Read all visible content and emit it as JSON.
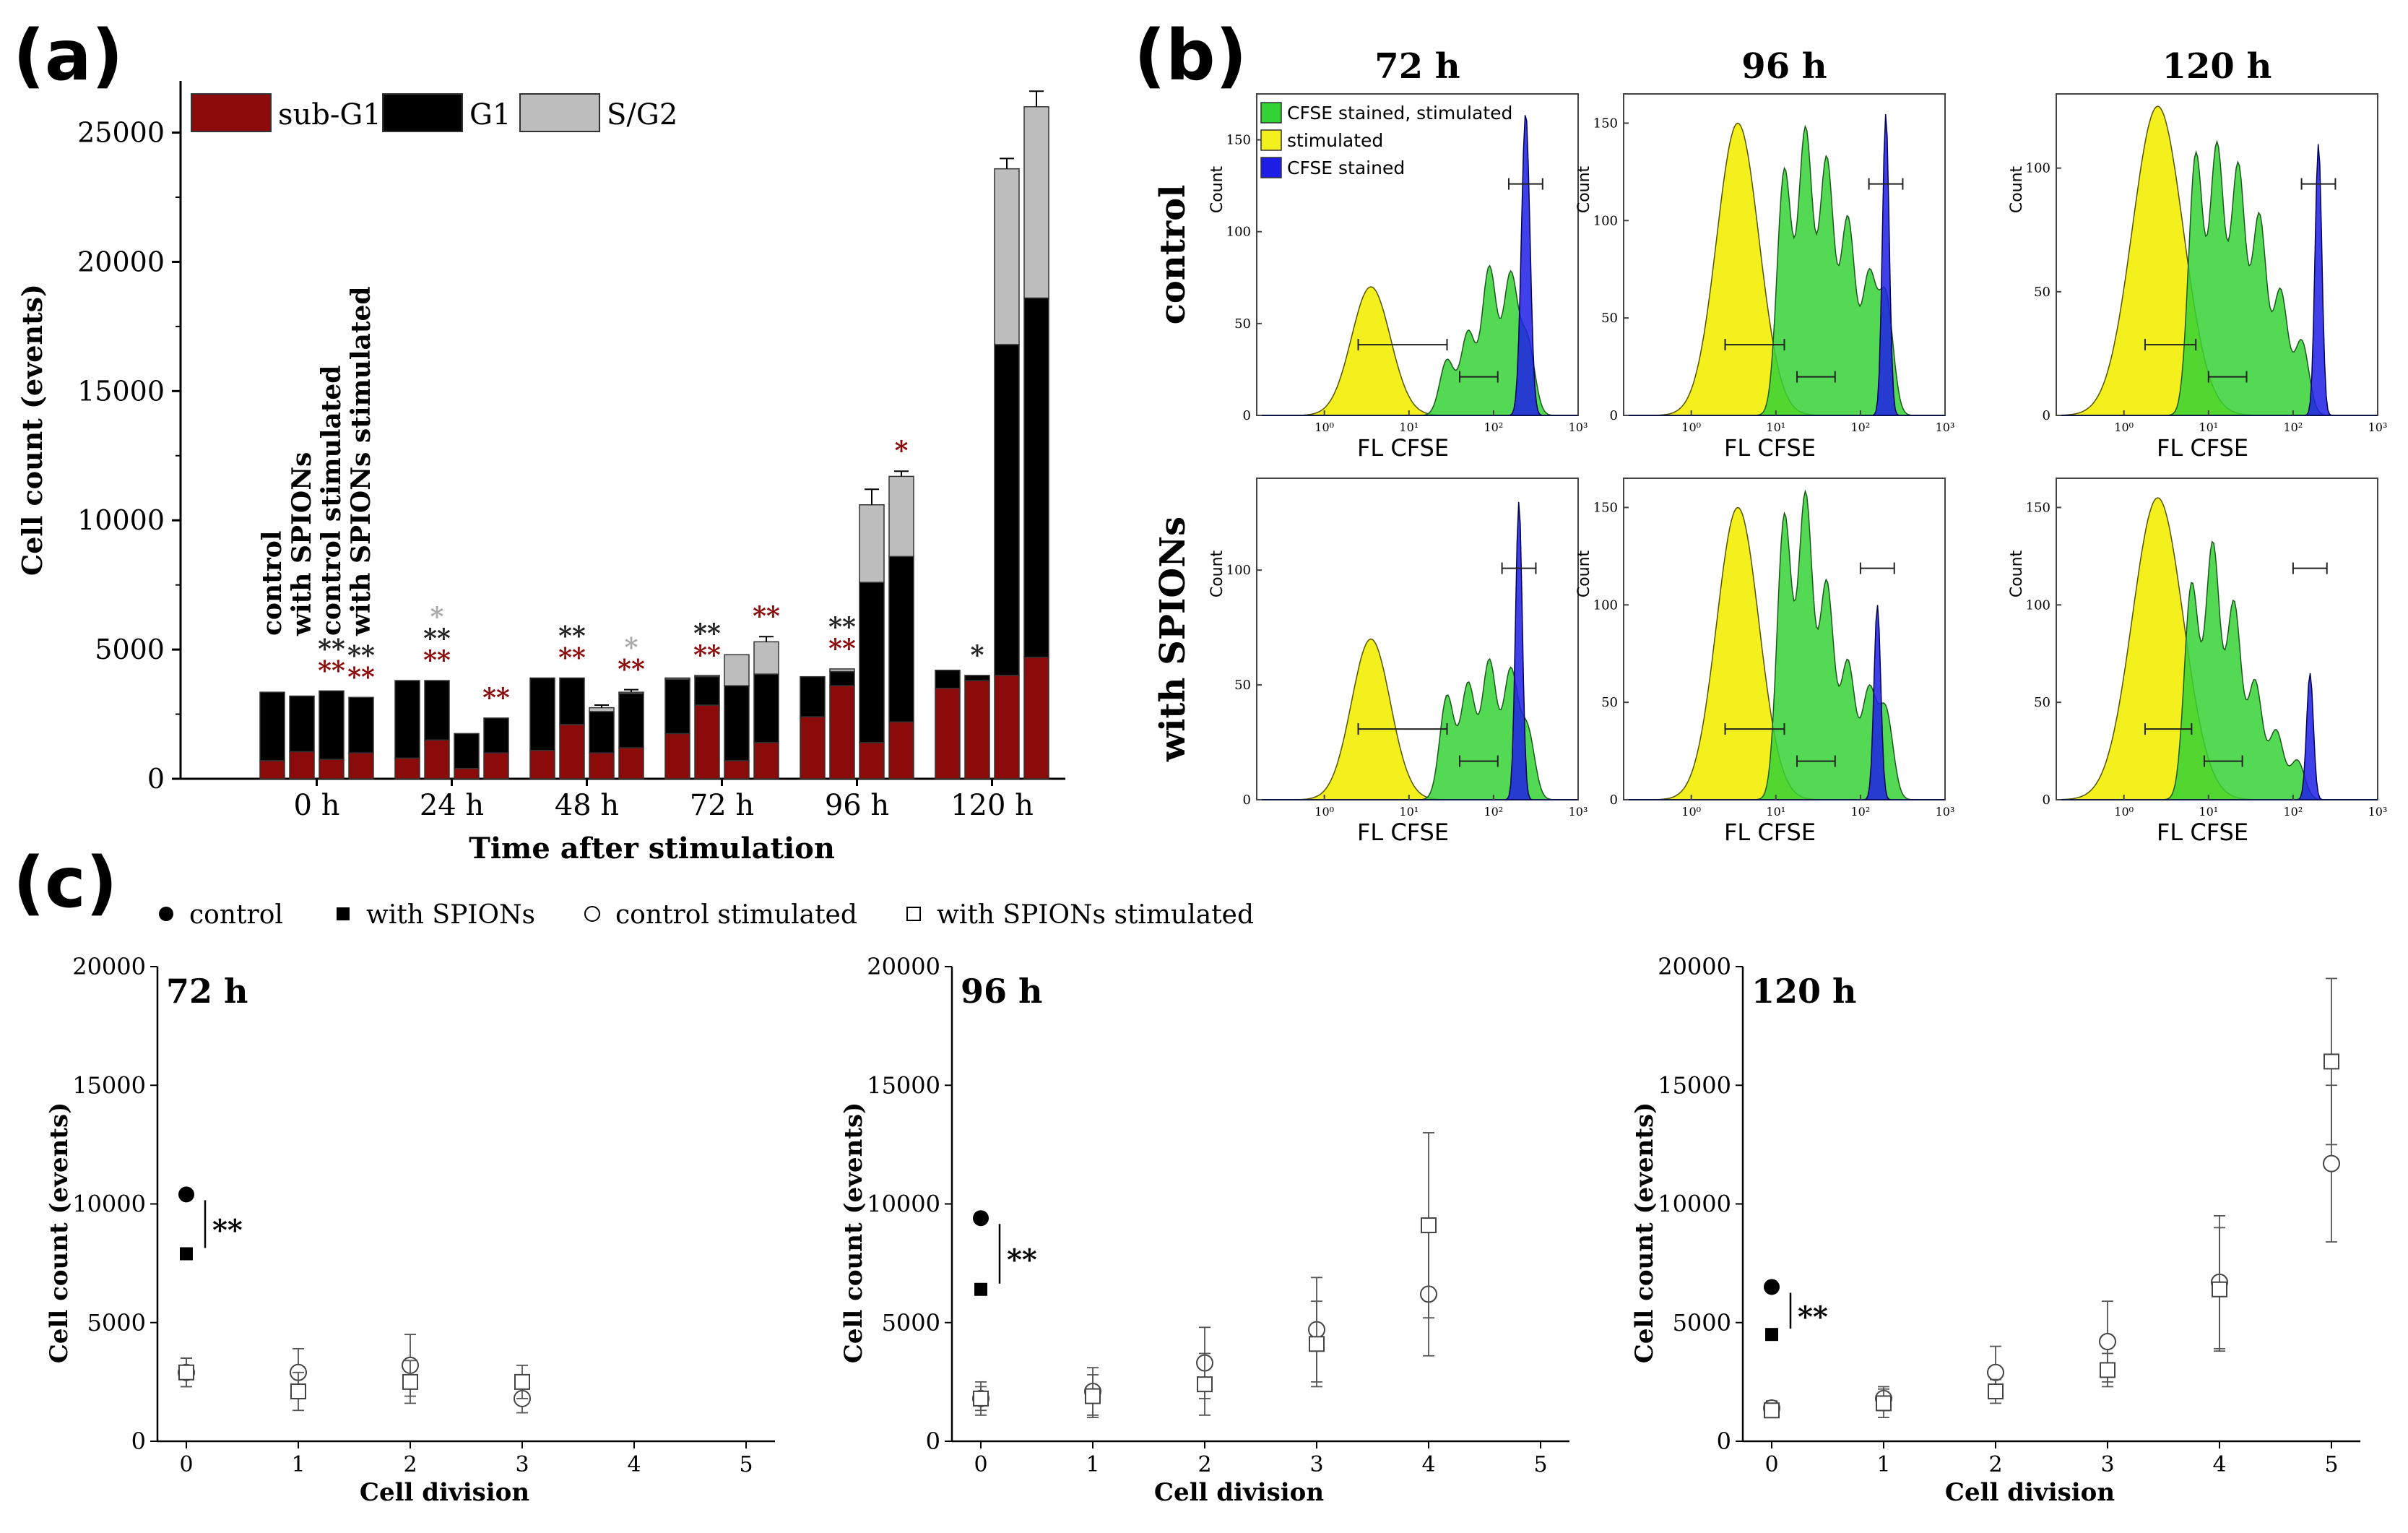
{
  "panel_labels": {
    "a": "(a)",
    "b": "(b)",
    "c": "(c)"
  },
  "chart_data": [
    {
      "id": "a",
      "type": "bar",
      "stacked": true,
      "title": "",
      "xlabel": "Time after stimulation",
      "ylabel": "Cell count (events)",
      "ylim": [
        0,
        27000
      ],
      "yticks": [
        0,
        5000,
        10000,
        15000,
        20000,
        25000
      ],
      "categories": [
        "0 h",
        "24 h",
        "48 h",
        "72 h",
        "96 h",
        "120 h"
      ],
      "bar_labels": [
        "control",
        "with SPIONs",
        "control stimulated",
        "with SPIONs stimulated"
      ],
      "legend": [
        {
          "name": "sub-G1",
          "color": "#8b0a0a"
        },
        {
          "name": "G1",
          "color": "#000000"
        },
        {
          "name": "S/G2",
          "color": "#bdbdbd"
        }
      ],
      "series": [
        {
          "name": "sub-G1",
          "values": [
            [
              700,
              1050,
              750,
              1000
            ],
            [
              800,
              1500,
              400,
              1000
            ],
            [
              1100,
              2100,
              1000,
              1200
            ],
            [
              1750,
              2850,
              700,
              1400
            ],
            [
              2400,
              3600,
              1400,
              2200
            ],
            [
              3500,
              3800,
              4000,
              4700
            ]
          ]
        },
        {
          "name": "G1",
          "values": [
            [
              2650,
              2150,
              2650,
              2150
            ],
            [
              3000,
              2300,
              1350,
              1350
            ],
            [
              2800,
              1800,
              1600,
              2100
            ],
            [
              2100,
              1100,
              2900,
              2650
            ],
            [
              1550,
              550,
              6200,
              6400
            ],
            [
              700,
              200,
              12800,
              13900
            ]
          ]
        },
        {
          "name": "S/G2",
          "values": [
            [
              0,
              0,
              0,
              0
            ],
            [
              0,
              0,
              0,
              0
            ],
            [
              0,
              0,
              150,
              50
            ],
            [
              50,
              50,
              1200,
              1250
            ],
            [
              0,
              100,
              3000,
              3100
            ],
            [
              0,
              0,
              6800,
              7400
            ]
          ]
        }
      ],
      "errors": [
        [
          0,
          0,
          0,
          0
        ],
        [
          0,
          0,
          0,
          0
        ],
        [
          0,
          0,
          100,
          100
        ],
        [
          0,
          0,
          0,
          200
        ],
        [
          0,
          0,
          600,
          200
        ],
        [
          0,
          0,
          400,
          600
        ]
      ],
      "annotations": [
        {
          "group": 0,
          "bar": 2,
          "text": "**",
          "color": "#222222",
          "row": 0
        },
        {
          "group": 0,
          "bar": 2,
          "text": "**",
          "color": "#8b0a0a",
          "row": 1
        },
        {
          "group": 0,
          "bar": 3,
          "text": "**",
          "color": "#222222",
          "row": 0
        },
        {
          "group": 0,
          "bar": 3,
          "text": "**",
          "color": "#8b0a0a",
          "row": 1
        },
        {
          "group": 1,
          "bar": 1,
          "text": "*",
          "color": "#aaaaaa",
          "row": -1
        },
        {
          "group": 1,
          "bar": 1,
          "text": "**",
          "color": "#222222",
          "row": 0
        },
        {
          "group": 1,
          "bar": 1,
          "text": "**",
          "color": "#8b0a0a",
          "row": 1
        },
        {
          "group": 1,
          "bar": 3,
          "text": "**",
          "color": "#8b0a0a",
          "row": 1
        },
        {
          "group": 2,
          "bar": 1,
          "text": "**",
          "color": "#222222",
          "row": 0
        },
        {
          "group": 2,
          "bar": 1,
          "text": "**",
          "color": "#8b0a0a",
          "row": 1
        },
        {
          "group": 2,
          "bar": 3,
          "text": "*",
          "color": "#aaaaaa",
          "row": 0
        },
        {
          "group": 2,
          "bar": 3,
          "text": "**",
          "color": "#8b0a0a",
          "row": 1
        },
        {
          "group": 3,
          "bar": 1,
          "text": "**",
          "color": "#222222",
          "row": 0
        },
        {
          "group": 3,
          "bar": 1,
          "text": "**",
          "color": "#8b0a0a",
          "row": 1
        },
        {
          "group": 3,
          "bar": 3,
          "text": "**",
          "color": "#8b0a0a",
          "row": 1
        },
        {
          "group": 4,
          "bar": 1,
          "text": "**",
          "color": "#222222",
          "row": 0
        },
        {
          "group": 4,
          "bar": 1,
          "text": "**",
          "color": "#8b0a0a",
          "row": 1
        },
        {
          "group": 4,
          "bar": 3,
          "text": "*",
          "color": "#8b0a0a",
          "row": 1
        },
        {
          "group": 5,
          "bar": 1,
          "text": "*",
          "color": "#222222",
          "row": 1
        }
      ]
    },
    {
      "id": "b",
      "type": "histogram",
      "columns": [
        "72 h",
        "96 h",
        "120 h"
      ],
      "rows": [
        "control",
        "with SPIONs"
      ],
      "xlabel": "FL CFSE",
      "ylabel": "Count",
      "xticks": [
        "10⁰",
        "10¹",
        "10²",
        "10³"
      ],
      "legend": [
        {
          "name": "CFSE stained, stimulated",
          "color": "#35d235"
        },
        {
          "name": "stimulated",
          "color": "#f4f01e"
        },
        {
          "name": "CFSE stained",
          "color": "#1e1ee6"
        }
      ],
      "panels": [
        {
          "row": 0,
          "col": 0,
          "yticks": [
            0,
            50,
            100,
            150
          ],
          "ymax": 175,
          "yellow": {
            "center": 0.55,
            "width": 0.23,
            "height": 70
          },
          "green": [
            {
              "center": 1.45,
              "h": 30
            },
            {
              "center": 1.7,
              "h": 45
            },
            {
              "center": 1.95,
              "h": 80
            },
            {
              "center": 2.2,
              "h": 75
            },
            {
              "center": 2.4,
              "h": 40
            }
          ],
          "blue": {
            "center": 2.38,
            "width": 0.05,
            "height": 165
          }
        },
        {
          "row": 0,
          "col": 1,
          "yticks": [
            0,
            50,
            100,
            150
          ],
          "ymax": 165,
          "yellow": {
            "center": 0.55,
            "width": 0.25,
            "height": 150
          },
          "green": [
            {
              "center": 1.1,
              "h": 125
            },
            {
              "center": 1.35,
              "h": 145
            },
            {
              "center": 1.6,
              "h": 130
            },
            {
              "center": 1.85,
              "h": 100
            },
            {
              "center": 2.1,
              "h": 70
            },
            {
              "center": 2.3,
              "h": 60
            }
          ],
          "blue": {
            "center": 2.3,
            "width": 0.04,
            "height": 155
          }
        },
        {
          "row": 0,
          "col": 2,
          "yticks": [
            0,
            50,
            100
          ],
          "ymax": 130,
          "yellow": {
            "center": 0.4,
            "width": 0.3,
            "height": 125
          },
          "green": [
            {
              "center": 0.85,
              "h": 105
            },
            {
              "center": 1.1,
              "h": 108
            },
            {
              "center": 1.35,
              "h": 100
            },
            {
              "center": 1.6,
              "h": 80
            },
            {
              "center": 1.85,
              "h": 50
            },
            {
              "center": 2.1,
              "h": 30
            }
          ],
          "blue": {
            "center": 2.3,
            "width": 0.04,
            "height": 110
          }
        },
        {
          "row": 1,
          "col": 0,
          "yticks": [
            0,
            50,
            100
          ],
          "ymax": 140,
          "yellow": {
            "center": 0.55,
            "width": 0.23,
            "height": 70
          },
          "green": [
            {
              "center": 1.45,
              "h": 45
            },
            {
              "center": 1.7,
              "h": 50
            },
            {
              "center": 1.95,
              "h": 60
            },
            {
              "center": 2.2,
              "h": 55
            },
            {
              "center": 2.4,
              "h": 30
            }
          ],
          "blue": {
            "center": 2.3,
            "width": 0.04,
            "height": 130
          }
        },
        {
          "row": 1,
          "col": 1,
          "yticks": [
            0,
            50,
            100,
            150
          ],
          "ymax": 165,
          "yellow": {
            "center": 0.55,
            "width": 0.25,
            "height": 150
          },
          "green": [
            {
              "center": 1.1,
              "h": 145
            },
            {
              "center": 1.35,
              "h": 155
            },
            {
              "center": 1.6,
              "h": 110
            },
            {
              "center": 1.85,
              "h": 70
            },
            {
              "center": 2.1,
              "h": 55
            },
            {
              "center": 2.3,
              "h": 45
            }
          ],
          "blue": {
            "center": 2.2,
            "width": 0.04,
            "height": 100
          }
        },
        {
          "row": 1,
          "col": 2,
          "yticks": [
            0,
            50,
            100,
            150
          ],
          "ymax": 165,
          "yellow": {
            "center": 0.4,
            "width": 0.3,
            "height": 155
          },
          "green": [
            {
              "center": 0.8,
              "h": 110
            },
            {
              "center": 1.05,
              "h": 130
            },
            {
              "center": 1.3,
              "h": 100
            },
            {
              "center": 1.55,
              "h": 60
            },
            {
              "center": 1.8,
              "h": 35
            },
            {
              "center": 2.05,
              "h": 20
            }
          ],
          "blue": {
            "center": 2.2,
            "width": 0.04,
            "height": 65
          }
        }
      ]
    },
    {
      "id": "c",
      "type": "scatter",
      "xlabel": "Cell division",
      "ylabel": "Cell count (events)",
      "xlim": [
        0,
        5
      ],
      "ylim": [
        0,
        20000
      ],
      "xticks": [
        0,
        1,
        2,
        3,
        4,
        5
      ],
      "yticks": [
        0,
        5000,
        10000,
        15000,
        20000
      ],
      "legend": [
        "control",
        "with SPIONs",
        "control stimulated",
        "with SPIONs stimulated"
      ],
      "panels": [
        {
          "title": "72 h",
          "significance": "**",
          "control": {
            "x": 0,
            "y": 10400
          },
          "spions": {
            "x": 0,
            "y": 7900
          },
          "control_stimulated": [
            {
              "x": 0,
              "y": 2900,
              "err": 600
            },
            {
              "x": 1,
              "y": 2900,
              "err": 1000
            },
            {
              "x": 2,
              "y": 3200,
              "err": 1300
            },
            {
              "x": 3,
              "y": 1800,
              "err": 600
            }
          ],
          "spions_stimulated": [
            {
              "x": 0,
              "y": 2900,
              "err": 600
            },
            {
              "x": 1,
              "y": 2100,
              "err": 800
            },
            {
              "x": 2,
              "y": 2500,
              "err": 900
            },
            {
              "x": 3,
              "y": 2500,
              "err": 700
            }
          ]
        },
        {
          "title": "96 h",
          "significance": "**",
          "control": {
            "x": 0,
            "y": 9400
          },
          "spions": {
            "x": 0,
            "y": 6400
          },
          "control_stimulated": [
            {
              "x": 0,
              "y": 1800,
              "err": 500
            },
            {
              "x": 1,
              "y": 2100,
              "err": 1000
            },
            {
              "x": 2,
              "y": 3300,
              "err": 1500
            },
            {
              "x": 3,
              "y": 4700,
              "err": 2200
            },
            {
              "x": 4,
              "y": 6200,
              "err": 2600
            }
          ],
          "spions_stimulated": [
            {
              "x": 0,
              "y": 1800,
              "err": 700
            },
            {
              "x": 1,
              "y": 1900,
              "err": 900
            },
            {
              "x": 2,
              "y": 2400,
              "err": 1300
            },
            {
              "x": 3,
              "y": 4100,
              "err": 1800
            },
            {
              "x": 4,
              "y": 9100,
              "err": 3900
            }
          ]
        },
        {
          "title": "120 h",
          "significance": "**",
          "control": {
            "x": 0,
            "y": 6500
          },
          "spions": {
            "x": 0,
            "y": 4500
          },
          "control_stimulated": [
            {
              "x": 0,
              "y": 1400,
              "err": 300
            },
            {
              "x": 1,
              "y": 1800,
              "err": 500
            },
            {
              "x": 2,
              "y": 2900,
              "err": 1100
            },
            {
              "x": 3,
              "y": 4200,
              "err": 1700
            },
            {
              "x": 4,
              "y": 6700,
              "err": 2800
            },
            {
              "x": 5,
              "y": 11700,
              "err": 3300
            }
          ],
          "spions_stimulated": [
            {
              "x": 0,
              "y": 1300,
              "err": 300
            },
            {
              "x": 1,
              "y": 1600,
              "err": 600
            },
            {
              "x": 2,
              "y": 2100,
              "err": 500
            },
            {
              "x": 3,
              "y": 3000,
              "err": 700
            },
            {
              "x": 4,
              "y": 6400,
              "err": 2600
            },
            {
              "x": 5,
              "y": 16000,
              "err": 3500
            }
          ]
        }
      ]
    }
  ]
}
